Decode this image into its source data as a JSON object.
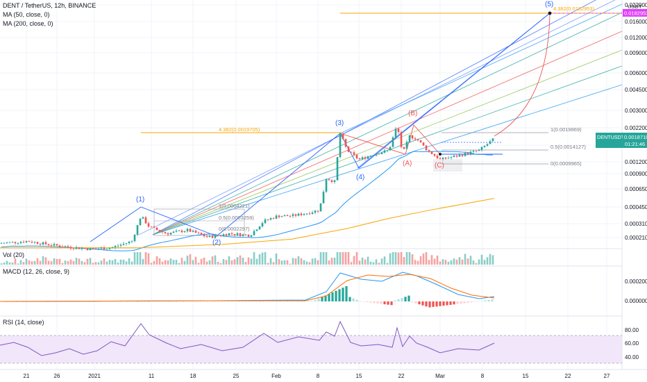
{
  "header": {
    "symbol_line": "DENT / TetherUS, 12h, BINANCE",
    "ma50": "MA (50, close, 0)",
    "ma200": "MA (200, close, 0)"
  },
  "price_axis": {
    "currency": "USDT",
    "ticks": [
      "0.0220000",
      "0.0160000",
      "0.0120000",
      "0.0090000",
      "0.0060000",
      "0.0045000",
      "0.0030000",
      "0.0022000",
      "0.0016000",
      "0.0012000",
      "0.0009000",
      "0.0006500",
      "0.0004500",
      "0.0003100",
      "0.0002100"
    ],
    "tag_ticker": "DENTUSDT",
    "tag_price": "0.0018710",
    "tag_countdown": "01:21:46",
    "target_tag": "0.0182953"
  },
  "date_axis": {
    "labels": [
      "21",
      "26",
      "2021",
      "11",
      "18",
      "25",
      "Feb",
      "8",
      "15",
      "22",
      "Mar",
      "8",
      "15",
      "22",
      "27"
    ]
  },
  "fib": {
    "top_level": "4.382(0.0182953)",
    "level_438": "4.382(0.0019705)",
    "r1": "1(0.0004221)",
    "r05": "0.5(0.0003259)",
    "r0": "0(0.0002297)",
    "right_1": "1(0.0019869)",
    "right_05": "0.5(0.0014127)",
    "right_0": "0(0.0009965)"
  },
  "waves": {
    "w1": "(1)",
    "w2": "(2)",
    "w3": "(3)",
    "w4": "(4)",
    "w5": "(5)",
    "a": "(A)",
    "b": "(B)",
    "c": "(C)"
  },
  "panes": {
    "vol": "Vol (20)",
    "macd": "MACD (12, 26, close, 9)",
    "macd_ticks": [
      "0.0002000",
      "0.0000000"
    ],
    "rsi": "RSI (14, close)",
    "rsi_ticks": [
      "80.00",
      "60.00",
      "40.00"
    ]
  },
  "chart_data": {
    "type": "candlestick",
    "title": "DENT / TetherUS, 12h, BINANCE",
    "price_scale": "log",
    "y_ticks": [
      0.022,
      0.016,
      0.012,
      0.009,
      0.006,
      0.0045,
      0.003,
      0.0022,
      0.0016,
      0.0012,
      0.0009,
      0.00065,
      0.00045,
      0.00031,
      0.00021
    ],
    "last_price": 0.001871,
    "target_price": 0.0182953,
    "close_series": [
      {
        "date": "Dec 18",
        "value": 0.00023
      },
      {
        "date": "Dec 26",
        "value": 0.00022
      },
      {
        "date": "Jan 1",
        "value": 0.0002
      },
      {
        "date": "Jan 7",
        "value": 0.00042
      },
      {
        "date": "Jan 11",
        "value": 0.00029
      },
      {
        "date": "Jan 18",
        "value": 0.00026
      },
      {
        "date": "Jan 25",
        "value": 0.00029
      },
      {
        "date": "Feb 1",
        "value": 0.00039
      },
      {
        "date": "Feb 8",
        "value": 0.00075
      },
      {
        "date": "Feb 11",
        "value": 0.002
      },
      {
        "date": "Feb 14",
        "value": 0.0011
      },
      {
        "date": "Feb 21",
        "value": 0.0026
      },
      {
        "date": "Feb 26",
        "value": 0.0012
      },
      {
        "date": "Mar 2",
        "value": 0.0016
      },
      {
        "date": "Mar 9",
        "value": 0.00187
      }
    ],
    "ma200_series": [
      {
        "date": "Dec 18",
        "value": 0.00021
      },
      {
        "date": "Jan 18",
        "value": 0.00024
      },
      {
        "date": "Feb 8",
        "value": 0.0003
      },
      {
        "date": "Feb 22",
        "value": 0.00042
      },
      {
        "date": "Mar 9",
        "value": 0.00058
      }
    ],
    "rsi_levels": [
      80,
      60,
      40
    ]
  }
}
